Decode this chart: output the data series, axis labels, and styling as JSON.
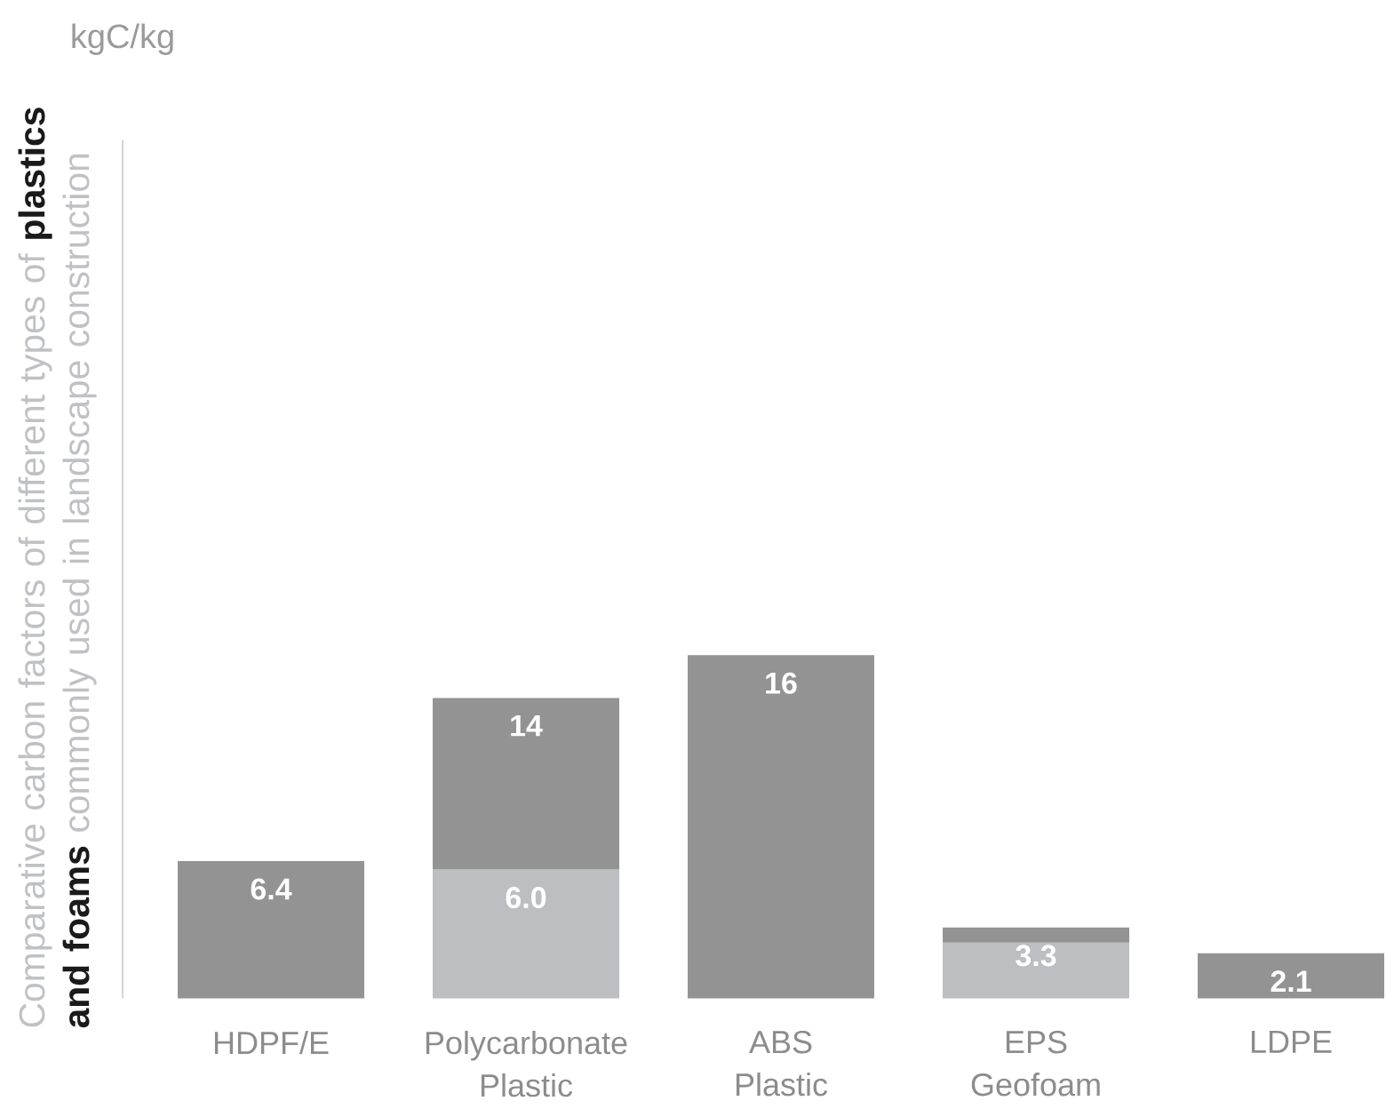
{
  "chart_data": {
    "type": "bar",
    "title": "Comparative carbon factors of different types of **plastics and foams** commonly used in landscape construction",
    "ylabel": "kgC/kg",
    "categories": [
      "HDPF/E",
      "Polycarbonate Plastic",
      "ABS Plastic",
      "EPS Geofoam",
      "LDPE"
    ],
    "stacked": true,
    "series": [
      {
        "color": "#bcbec1",
        "values": [
          null,
          6.0,
          null,
          2.6,
          null
        ],
        "value_labels": [
          null,
          "6.0",
          null,
          null,
          null
        ]
      },
      {
        "color": "#939393",
        "values": [
          6.4,
          8.0,
          16,
          0.7,
          2.1
        ]
      }
    ],
    "totals": [
      "6.4",
      "14",
      "16",
      "3.3",
      "2.1"
    ],
    "ylim": [
      0,
      40
    ]
  }
}
